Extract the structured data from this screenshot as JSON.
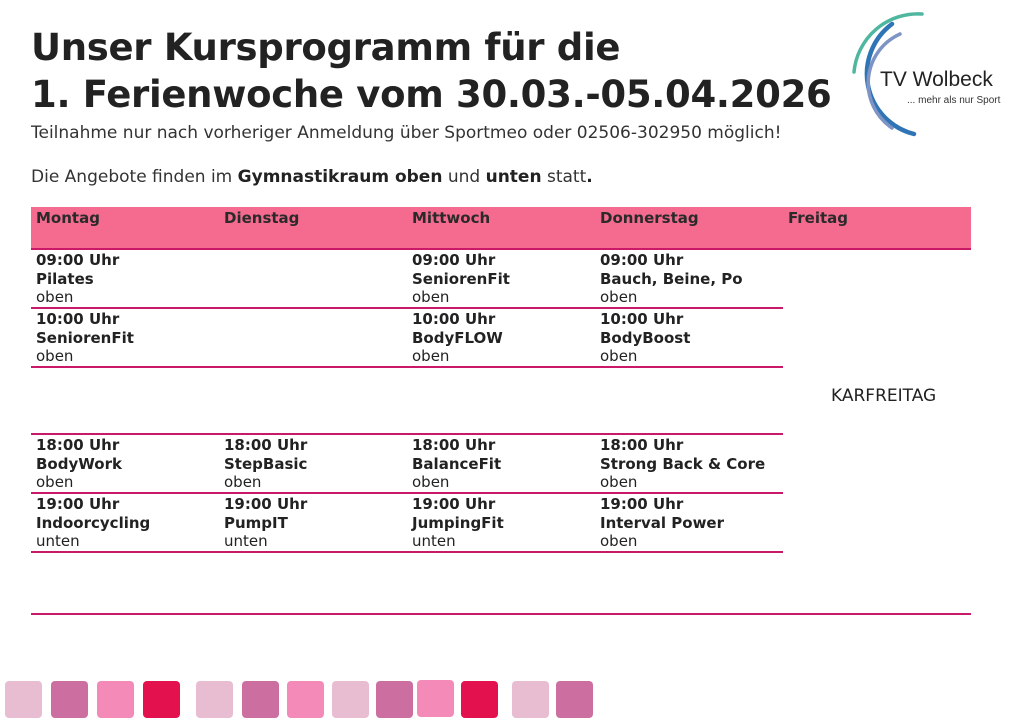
{
  "title_line1": "Unser Kursprogramm für die",
  "title_line2": "1. Ferienwoche vom 30.03.-05.04.2026",
  "subtitle": "Teilnahme nur nach vorheriger Anmeldung über Sportmeo oder 02506-302950 möglich!",
  "location": {
    "prefix": "Die Angebote finden im ",
    "room": "Gymnastikraum oben",
    "and": " und ",
    "room2": "unten",
    "suffix": " statt",
    "period": "."
  },
  "logo": {
    "name": "TV Wolbeck",
    "tagline": "... mehr als nur Sport",
    "colors": [
      "#4fb6a0",
      "#2f74b5",
      "#7e94c4"
    ]
  },
  "days": [
    "Montag",
    "Dienstag",
    "Mittwoch",
    "Donnerstag",
    "Freitag"
  ],
  "friday_note": "KARFREITAG",
  "schedule": {
    "mon_0900": {
      "time": "09:00 Uhr",
      "course": "Pilates",
      "room": "oben"
    },
    "mon_1000": {
      "time": "10:00 Uhr",
      "course": "SeniorenFit",
      "room": "oben"
    },
    "mon_1800": {
      "time": "18:00 Uhr",
      "course": "BodyWork",
      "room": "oben"
    },
    "mon_1900": {
      "time": "19:00 Uhr",
      "course": "Indoorcycling",
      "room": "unten"
    },
    "tue_1800": {
      "time": "18:00 Uhr",
      "course": "StepBasic",
      "room": "oben"
    },
    "tue_1900": {
      "time": "19:00 Uhr",
      "course": "PumpIT",
      "room": "unten"
    },
    "wed_0900": {
      "time": "09:00 Uhr",
      "course": "SeniorenFit",
      "room": "oben"
    },
    "wed_1000": {
      "time": "10:00 Uhr",
      "course": "BodyFLOW",
      "room": "oben"
    },
    "wed_1800": {
      "time": "18:00 Uhr",
      "course": "BalanceFit",
      "room": "oben"
    },
    "wed_1900": {
      "time": "19:00 Uhr",
      "course": "JumpingFit",
      "room": "unten"
    },
    "thu_0900": {
      "time": "09:00 Uhr",
      "course": "Bauch, Beine, Po",
      "room": "oben"
    },
    "thu_1000": {
      "time": "10:00 Uhr",
      "course": "BodyBoost",
      "room": "oben"
    },
    "thu_1800": {
      "time": "18:00 Uhr",
      "course": "Strong Back & Core",
      "room": "oben"
    },
    "thu_1900": {
      "time": "19:00 Uhr",
      "course": "Interval Power",
      "room": "oben"
    }
  },
  "colors": {
    "header": "#f46b8f",
    "divider": "#c81a66",
    "squares": [
      "#e8bdd2",
      "#cc6fa0",
      "#f48ab8",
      "#e3124f",
      "#e8bdd2",
      "#cc6fa0",
      "#f48ab8",
      "#e8bdd2",
      "#cc6fa0",
      "#f48ab8",
      "#e3124f",
      "#e8bdd2",
      "#cc6fa0"
    ]
  }
}
